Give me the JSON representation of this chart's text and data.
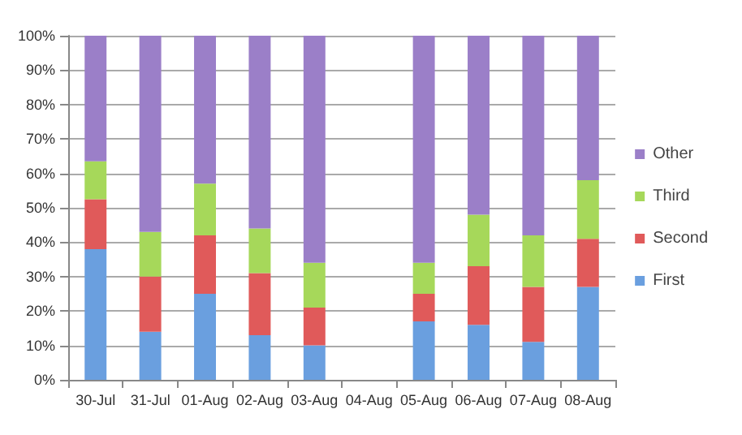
{
  "chart_data": {
    "type": "bar",
    "stacked": true,
    "categories": [
      "30-Jul",
      "31-Jul",
      "01-Aug",
      "02-Aug",
      "03-Aug",
      "04-Aug",
      "05-Aug",
      "06-Aug",
      "07-Aug",
      "08-Aug"
    ],
    "series": [
      {
        "name": "First",
        "color": "#6a9fdf",
        "values": [
          38,
          14,
          25,
          13,
          10,
          null,
          17,
          16,
          11,
          27
        ]
      },
      {
        "name": "Second",
        "color": "#e05a5a",
        "values": [
          14.5,
          16,
          17,
          18,
          11,
          null,
          8,
          17,
          16,
          14
        ]
      },
      {
        "name": "Third",
        "color": "#a6d85a",
        "values": [
          11,
          13,
          15,
          13,
          13,
          null,
          9,
          15,
          15,
          17
        ]
      },
      {
        "name": "Other",
        "color": "#9b7fc8",
        "values": [
          36.5,
          57,
          43,
          56,
          66,
          null,
          66,
          52,
          58,
          42
        ]
      }
    ],
    "ylim": [
      0,
      100
    ],
    "yticks": [
      {
        "value": 0,
        "label": "0%"
      },
      {
        "value": 10,
        "label": "10%"
      },
      {
        "value": 20,
        "label": "20%"
      },
      {
        "value": 30,
        "label": "30%"
      },
      {
        "value": 40,
        "label": "40%"
      },
      {
        "value": 50,
        "label": "50%"
      },
      {
        "value": 60,
        "label": "60%"
      },
      {
        "value": 70,
        "label": "70%"
      },
      {
        "value": 80,
        "label": "80%"
      },
      {
        "value": 90,
        "label": "90%"
      },
      {
        "value": 100,
        "label": "100%"
      }
    ],
    "grid": "y",
    "legend": "right"
  }
}
